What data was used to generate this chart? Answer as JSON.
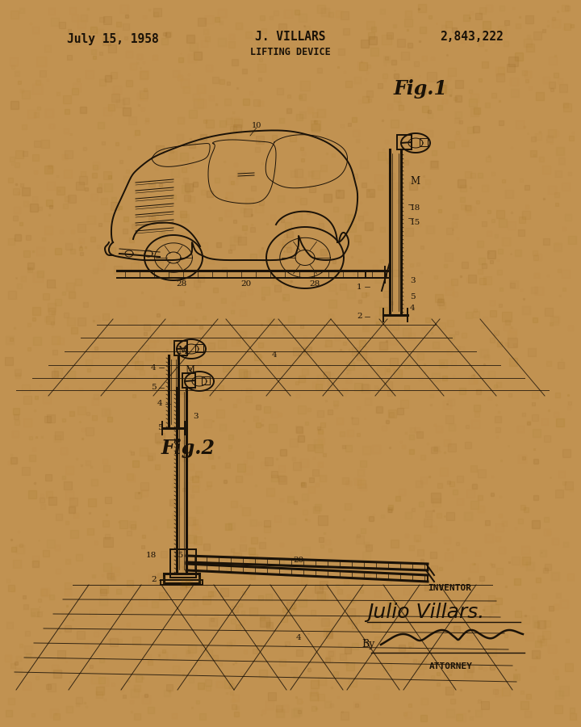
{
  "bg_color": "#D4A464",
  "ink_color": "#1A1208",
  "title_date": "July 15, 1958",
  "title_inventor": "J. VILLARS",
  "title_patent": "2,843,222",
  "title_device": "LIFTING DEVICE",
  "fig1_label": "Fig.1",
  "fig2_label": "Fig.2",
  "inventor_label": "INVENTOR",
  "inventor_name": "Julio Villars.",
  "by_label": "By",
  "attorney_label": "ATTORNEY"
}
